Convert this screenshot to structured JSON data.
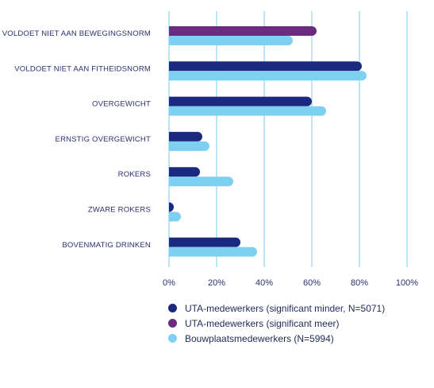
{
  "chart_data": {
    "type": "bar",
    "orientation": "horizontal",
    "categories": [
      "VOLDOET NIET AAN BEWEGINGSNORM",
      "VOLDOET NIET AAN FITHEIDSNORM",
      "OVERGEWICHT",
      "ERNSTIG OVERGEWICHT",
      "ROKERS",
      "ZWARE ROKERS",
      "BOVENMATIG DRINKEN"
    ],
    "series": [
      {
        "name": "UTA-medewerkers",
        "values": [
          62,
          81,
          60,
          14,
          13,
          2,
          30
        ],
        "colors": [
          "#6c2a80",
          "#1b2a80",
          "#1b2a80",
          "#1b2a80",
          "#1b2a80",
          "#1b2a80",
          "#1b2a80"
        ]
      },
      {
        "name": "Bouwplaatsmedewerkers",
        "values": [
          52,
          83,
          66,
          17,
          27,
          5,
          37
        ],
        "colors": [
          "#7ed0f0",
          "#7ed0f0",
          "#7ed0f0",
          "#7ed0f0",
          "#7ed0f0",
          "#7ed0f0",
          "#7ed0f0"
        ]
      }
    ],
    "xlim": [
      0,
      100
    ],
    "xticks": [
      "0%",
      "20%",
      "40%",
      "60%",
      "80%",
      "100%"
    ],
    "grid": "vertical",
    "legend_position": "bottom",
    "legend": [
      {
        "label": "UTA-medewerkers (significant minder, N=5071)",
        "color": "#1b2a80"
      },
      {
        "label": "UTA-medewerkers (significant meer)",
        "color": "#6c2a80"
      },
      {
        "label": "Bouwplaatsmedewerkers (N=5994)",
        "color": "#7ed0f0"
      }
    ]
  }
}
